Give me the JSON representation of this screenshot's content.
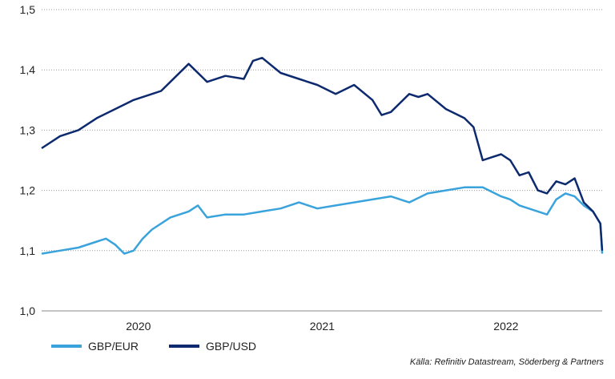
{
  "chart_data": {
    "type": "line",
    "title": "",
    "xlabel": "",
    "ylabel": "",
    "ylim": [
      1.0,
      1.5
    ],
    "y_ticks": [
      "1,0",
      "1,1",
      "1,2",
      "1,3",
      "1,4",
      "1,5"
    ],
    "y_tick_values": [
      1.0,
      1.1,
      1.2,
      1.3,
      1.4,
      1.5
    ],
    "x_ticks": [
      "2020",
      "2021",
      "2022"
    ],
    "x_tick_values": [
      2020.0,
      2021.0,
      2022.0
    ],
    "xlim": [
      2019.7,
      2022.75
    ],
    "grid": "horizontal dotted",
    "legend_position": "bottom-left",
    "series": [
      {
        "name": "GBP/EUR",
        "color": "#3aa3dc",
        "x": [
          2019.7,
          2019.8,
          2019.9,
          2020.0,
          2020.05,
          2020.1,
          2020.15,
          2020.2,
          2020.25,
          2020.3,
          2020.4,
          2020.5,
          2020.55,
          2020.6,
          2020.7,
          2020.8,
          2020.9,
          2021.0,
          2021.1,
          2021.2,
          2021.3,
          2021.4,
          2021.5,
          2021.6,
          2021.7,
          2021.8,
          2021.9,
          2022.0,
          2022.1,
          2022.2,
          2022.25,
          2022.3,
          2022.35,
          2022.4,
          2022.45,
          2022.5,
          2022.55,
          2022.6,
          2022.65,
          2022.7,
          2022.74,
          2022.75
        ],
        "values": [
          1.095,
          1.1,
          1.105,
          1.115,
          1.12,
          1.11,
          1.095,
          1.1,
          1.12,
          1.135,
          1.155,
          1.165,
          1.175,
          1.155,
          1.16,
          1.16,
          1.165,
          1.17,
          1.18,
          1.17,
          1.175,
          1.18,
          1.185,
          1.19,
          1.18,
          1.195,
          1.2,
          1.205,
          1.205,
          1.19,
          1.185,
          1.175,
          1.17,
          1.165,
          1.16,
          1.185,
          1.195,
          1.19,
          1.175,
          1.165,
          1.145,
          1.095
        ]
      },
      {
        "name": "GBP/USD",
        "color": "#0d2a6e",
        "x": [
          2019.7,
          2019.8,
          2019.9,
          2020.0,
          2020.1,
          2020.2,
          2020.3,
          2020.35,
          2020.4,
          2020.5,
          2020.6,
          2020.7,
          2020.8,
          2020.85,
          2020.9,
          2021.0,
          2021.1,
          2021.2,
          2021.3,
          2021.4,
          2021.5,
          2021.55,
          2021.6,
          2021.7,
          2021.75,
          2021.8,
          2021.9,
          2022.0,
          2022.05,
          2022.1,
          2022.15,
          2022.2,
          2022.25,
          2022.3,
          2022.35,
          2022.4,
          2022.45,
          2022.5,
          2022.55,
          2022.6,
          2022.65,
          2022.7,
          2022.74,
          2022.75
        ],
        "values": [
          1.27,
          1.29,
          1.3,
          1.32,
          1.335,
          1.35,
          1.36,
          1.365,
          1.38,
          1.41,
          1.38,
          1.39,
          1.385,
          1.415,
          1.42,
          1.395,
          1.385,
          1.375,
          1.36,
          1.375,
          1.35,
          1.325,
          1.33,
          1.36,
          1.355,
          1.36,
          1.335,
          1.32,
          1.305,
          1.25,
          1.255,
          1.26,
          1.25,
          1.225,
          1.23,
          1.2,
          1.195,
          1.215,
          1.21,
          1.22,
          1.18,
          1.165,
          1.145,
          1.1
        ]
      }
    ],
    "source": "Källa: Refinitiv Datastream, Söderberg & Partners"
  }
}
